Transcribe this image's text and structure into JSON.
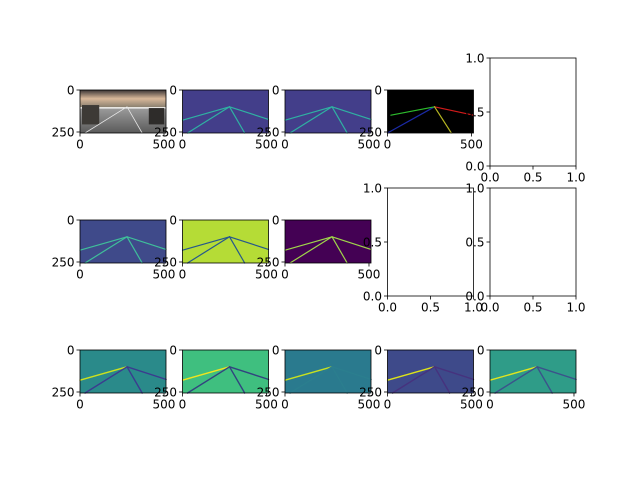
{
  "chart_data": {
    "type": "image-grid",
    "grid": {
      "rows": 3,
      "cols": 5
    },
    "panels": [
      {
        "row": 0,
        "col": 0,
        "kind": "image",
        "image": "road-photo",
        "xlim": [
          0,
          512
        ],
        "ylim": [
          256,
          0
        ],
        "xticks": [
          "0",
          "500"
        ],
        "yticks": [
          "0",
          "250"
        ]
      },
      {
        "row": 0,
        "col": 1,
        "kind": "image",
        "image": "lane-map",
        "cmap": "viridis",
        "xlim": [
          0,
          512
        ],
        "ylim": [
          256,
          0
        ],
        "xticks": [
          "0",
          "500"
        ],
        "yticks": [
          "0",
          "250"
        ]
      },
      {
        "row": 0,
        "col": 2,
        "kind": "image",
        "image": "lane-map",
        "cmap": "viridis",
        "xlim": [
          0,
          512
        ],
        "ylim": [
          256,
          0
        ],
        "xticks": [
          "0",
          "500"
        ],
        "yticks": [
          "0",
          "250"
        ]
      },
      {
        "row": 0,
        "col": 3,
        "kind": "image",
        "image": "rgb-lanes",
        "xlim": [
          0,
          512
        ],
        "ylim": [
          256,
          0
        ],
        "xticks": [
          "0",
          "500"
        ],
        "yticks": [
          "0",
          "250"
        ]
      },
      {
        "row": 0,
        "col": 4,
        "kind": "empty",
        "xlim": [
          0,
          1
        ],
        "ylim": [
          0,
          1
        ],
        "xticks": [
          "0.0",
          "0.5",
          "1.0"
        ],
        "yticks": [
          "0.0",
          "0.5",
          "1.0"
        ]
      },
      {
        "row": 1,
        "col": 0,
        "kind": "image",
        "image": "lane-map",
        "cmap": "viridis",
        "xlim": [
          0,
          512
        ],
        "ylim": [
          256,
          0
        ],
        "xticks": [
          "0",
          "500"
        ],
        "yticks": [
          "0",
          "250"
        ]
      },
      {
        "row": 1,
        "col": 1,
        "kind": "image",
        "image": "lane-map-inverted",
        "cmap": "viridis",
        "xlim": [
          0,
          512
        ],
        "ylim": [
          256,
          0
        ],
        "xticks": [
          "0",
          "500"
        ],
        "yticks": [
          "0",
          "250"
        ]
      },
      {
        "row": 1,
        "col": 2,
        "kind": "image",
        "image": "lane-map-dark",
        "cmap": "viridis",
        "xlim": [
          0,
          512
        ],
        "ylim": [
          256,
          0
        ],
        "xticks": [
          "0",
          "500"
        ],
        "yticks": [
          "0",
          "250"
        ]
      },
      {
        "row": 1,
        "col": 3,
        "kind": "empty",
        "xlim": [
          0,
          1
        ],
        "ylim": [
          0,
          1
        ],
        "xticks": [
          "0.0",
          "0.5",
          "1.0"
        ],
        "yticks": [
          "0.0",
          "0.5",
          "1.0"
        ]
      },
      {
        "row": 1,
        "col": 4,
        "kind": "empty",
        "xlim": [
          0,
          1
        ],
        "ylim": [
          0,
          1
        ],
        "xticks": [
          "0.0",
          "0.5",
          "1.0"
        ],
        "yticks": [
          "0.0",
          "0.5",
          "1.0"
        ]
      },
      {
        "row": 2,
        "col": 0,
        "kind": "image",
        "image": "lane-channel",
        "cmap": "viridis",
        "xlim": [
          0,
          512
        ],
        "ylim": [
          256,
          0
        ],
        "xticks": [
          "0",
          "500"
        ],
        "yticks": [
          "0",
          "250"
        ]
      },
      {
        "row": 2,
        "col": 1,
        "kind": "image",
        "image": "lane-channel",
        "cmap": "viridis",
        "xlim": [
          0,
          512
        ],
        "ylim": [
          256,
          0
        ],
        "xticks": [
          "0",
          "500"
        ],
        "yticks": [
          "0",
          "250"
        ]
      },
      {
        "row": 2,
        "col": 2,
        "kind": "image",
        "image": "lane-channel",
        "cmap": "viridis",
        "xlim": [
          0,
          512
        ],
        "ylim": [
          256,
          0
        ],
        "xticks": [
          "0",
          "500"
        ],
        "yticks": [
          "0",
          "250"
        ]
      },
      {
        "row": 2,
        "col": 3,
        "kind": "image",
        "image": "lane-channel",
        "cmap": "viridis",
        "xlim": [
          0,
          512
        ],
        "ylim": [
          256,
          0
        ],
        "xticks": [
          "0",
          "500"
        ],
        "yticks": [
          "0",
          "250"
        ]
      },
      {
        "row": 2,
        "col": 4,
        "kind": "image",
        "image": "lane-channel",
        "cmap": "viridis",
        "xlim": [
          0,
          512
        ],
        "ylim": [
          256,
          0
        ],
        "xticks": [
          "0",
          "500"
        ],
        "yticks": [
          "0",
          "250"
        ]
      }
    ]
  }
}
